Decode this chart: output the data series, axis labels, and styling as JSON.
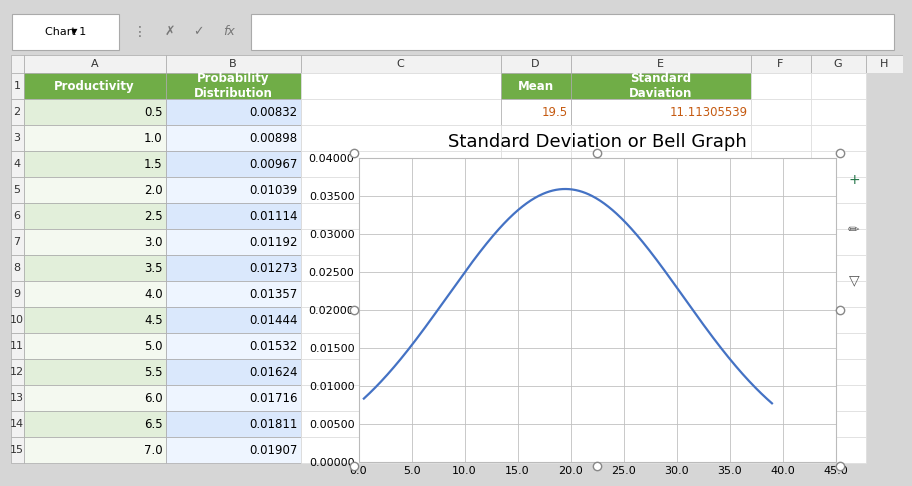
{
  "mean": 19.5,
  "std": 11.11305539,
  "title": "Standard Deviation or Bell Graph",
  "x_min": 0.0,
  "x_max": 45.0,
  "x_ticks": [
    0.0,
    5.0,
    10.0,
    15.0,
    20.0,
    25.0,
    30.0,
    35.0,
    40.0,
    45.0
  ],
  "y_min": 0.0,
  "y_max": 0.04,
  "y_ticks": [
    0.0,
    0.005,
    0.01,
    0.015,
    0.02,
    0.025,
    0.03,
    0.035,
    0.04
  ],
  "line_color": "#4472C4",
  "line_width": 1.6,
  "chart_bg": "#FFFFFF",
  "grid_color": "#C0C0C0",
  "title_fontsize": 13,
  "tick_fontsize": 8,
  "header_bg": "#70AD47",
  "header_text_color": "#FFFFFF",
  "col_a_bg_even": "#E2EFDA",
  "col_a_bg_odd": "#F4F9F0",
  "col_b_bg_even": "#DAE8FC",
  "col_b_bg_odd": "#EEF5FF",
  "excel_bg": "#D6D6D6",
  "toolbar_bg": "#F2F2F2",
  "col_header_bg": "#F2F2F2",
  "cell_border_color": "#D0D0D0",
  "row_num_bg": "#F2F2F2",
  "mean_value": "19.5",
  "std_value": "11.11305539",
  "table_rows": [
    [
      0.5,
      "0.00832"
    ],
    [
      1.0,
      "0.00898"
    ],
    [
      1.5,
      "0.00967"
    ],
    [
      2.0,
      "0.01039"
    ],
    [
      2.5,
      "0.01114"
    ],
    [
      3.0,
      "0.01192"
    ],
    [
      3.5,
      "0.01273"
    ],
    [
      4.0,
      "0.01357"
    ],
    [
      4.5,
      "0.01444"
    ],
    [
      5.0,
      "0.01532"
    ],
    [
      5.5,
      "0.01624"
    ],
    [
      6.0,
      "0.01716"
    ],
    [
      6.5,
      "0.01811"
    ],
    [
      7.0,
      "0.01907"
    ]
  ]
}
